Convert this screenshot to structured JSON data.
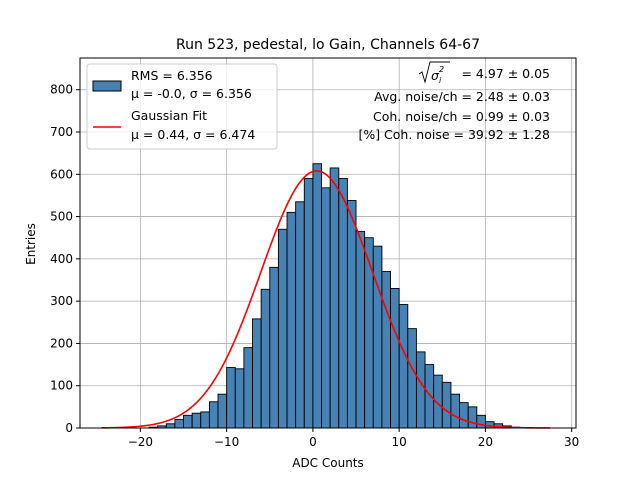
{
  "chart_data": {
    "type": "bar",
    "title": "Run 523, pedestal, lo Gain, Channels 64-67",
    "xlabel": "ADC Counts",
    "ylabel": "Entries",
    "xlim": [
      -27,
      30.5
    ],
    "ylim": [
      0,
      875
    ],
    "xticks": [
      -20,
      -10,
      0,
      10,
      20,
      30
    ],
    "yticks": [
      0,
      100,
      200,
      300,
      400,
      500,
      600,
      700,
      800
    ],
    "grid": true,
    "bin_width": 1,
    "bin_edges_start": -19,
    "histogram_counts": [
      2,
      5,
      10,
      20,
      30,
      35,
      38,
      62,
      80,
      143,
      140,
      190,
      258,
      328,
      380,
      470,
      510,
      535,
      590,
      625,
      568,
      615,
      590,
      538,
      465,
      450,
      430,
      370,
      330,
      292,
      235,
      180,
      150,
      125,
      108,
      80,
      60,
      50,
      30,
      15,
      10,
      5,
      2
    ],
    "histogram_color": "#4682b4",
    "gaussian_fit": {
      "mu": 0.44,
      "sigma": 6.474,
      "amplitude": 608,
      "x_range": [
        -24.5,
        27.5
      ],
      "color": "#ff0000"
    },
    "legend": {
      "placement": "upper left",
      "entries": [
        {
          "kind": "patch",
          "line1": "RMS = 6.356",
          "line2": "μ = -0.0, σ = 6.356"
        },
        {
          "kind": "line",
          "line1": "Gaussian Fit",
          "line2": "μ = 0.44, σ = 6.474"
        }
      ]
    },
    "annotations": {
      "sigma_value": "= 4.97 ± 0.05",
      "avg_noise": "Avg. noise/ch = 2.48 ± 0.03",
      "coh_noise": "Coh. noise/ch = 0.99 ± 0.03",
      "pct_coh_noise": "[%] Coh. noise = 39.92 ± 1.28"
    }
  }
}
